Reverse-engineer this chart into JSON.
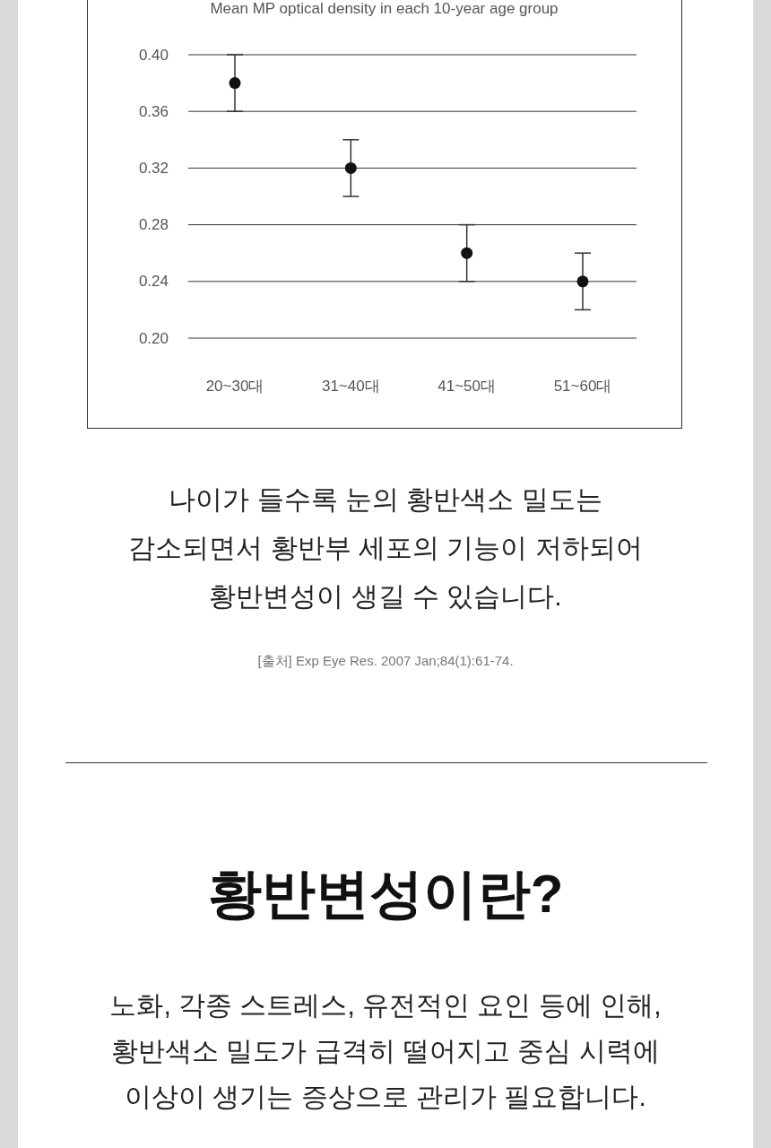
{
  "chart_data": {
    "type": "scatter",
    "title": "Mean MP optical density in each 10-year age group",
    "categories": [
      "20~30대",
      "31~40대",
      "41~50대",
      "51~60대"
    ],
    "values": [
      0.38,
      0.32,
      0.26,
      0.24
    ],
    "errors": [
      0.02,
      0.02,
      0.02,
      0.02
    ],
    "color": "#111111",
    "marker": "circle",
    "ylim": [
      0.2,
      0.4
    ],
    "yticks": [
      {
        "value": 0.2,
        "label": "0.20"
      },
      {
        "value": 0.24,
        "label": "0.24"
      },
      {
        "value": 0.28,
        "label": "0.28"
      },
      {
        "value": 0.32,
        "label": "0.32"
      },
      {
        "value": 0.36,
        "label": "0.36"
      },
      {
        "value": 0.4,
        "label": "0.40"
      }
    ],
    "grid": "y",
    "annotations": [
      "나이가 들수록 눈의 황반색소 밀도는\n감소되면서 황반부 세포의 기능이 저하되어\n황반변성이 생길 수 있습니다.",
      "[출처] Exp Eye Res. 2007 Jan;84(1):61-74.",
      "황반변성이란?",
      "노화, 각종 스트레스, 유전적인 요인 등에 인해,\n황반색소 밀도가 급격히 떨어지고 중심 시력에\n이상이 생기는 증상으로 관리가 필요합니다."
    ]
  }
}
